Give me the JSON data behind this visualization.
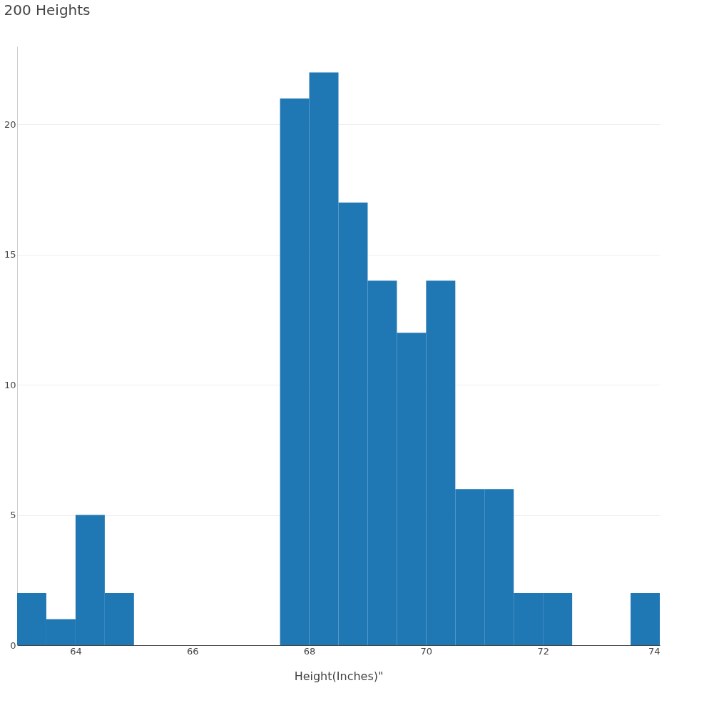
{
  "chart_data": {
    "type": "histogram",
    "title": "200 Heights",
    "xlabel": "Height(Inches)\"",
    "bins": [
      63,
      63.5,
      64,
      64.5,
      65,
      65.5,
      66,
      66.5,
      67,
      67.5,
      68,
      68.5,
      69,
      69.5,
      70,
      70.5,
      71,
      71.5,
      72,
      72.5,
      73,
      73.5,
      74
    ],
    "values": [
      2,
      1,
      5,
      2,
      null,
      null,
      null,
      null,
      null,
      21,
      22,
      17,
      14,
      12,
      14,
      6,
      6,
      2,
      2,
      0,
      0,
      2
    ],
    "color": "#1f77b4",
    "xlim": [
      63,
      74
    ],
    "xticks": [
      64,
      66,
      68,
      70,
      72,
      74
    ],
    "ylim": [
      0,
      23
    ],
    "yticks": [
      0,
      5,
      10,
      15,
      20
    ],
    "grid": "y"
  }
}
